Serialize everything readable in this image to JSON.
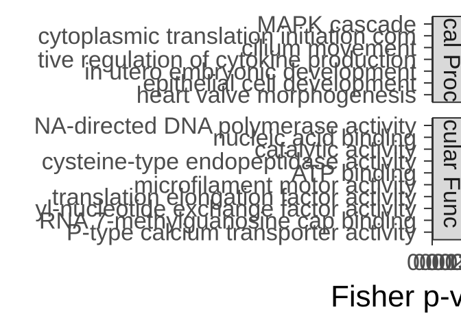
{
  "chart_data": {
    "type": "bar",
    "orientation": "horizontal",
    "xlabel": "Fisher p-v",
    "x_ticks": [
      "0.00",
      "0.01",
      "0.02",
      "0.03",
      "0.04"
    ],
    "facets": [
      {
        "strip_label": "cal Proc",
        "categories": [
          "MAPK cascade",
          "cytoplasmic translation initiation com",
          "cilium movement",
          "tive regulation of cytokine production",
          "in utero embryonic development",
          "epithelial cell development",
          "heart valve morphogenesis"
        ]
      },
      {
        "strip_label": "cular Func",
        "categories": [
          "NA-directed DNA polymerase activity",
          "nucleic acid binding",
          "catalytic activity",
          "cysteine-type endopeptidase activity",
          "ATP binding",
          "microfilament motor activity",
          "translation elongation factor activity",
          "yl-nucleotide exchange factor activity",
          "RNA 7-methylguanosine cap binding",
          "P-type calcium transporter activity"
        ]
      }
    ]
  }
}
